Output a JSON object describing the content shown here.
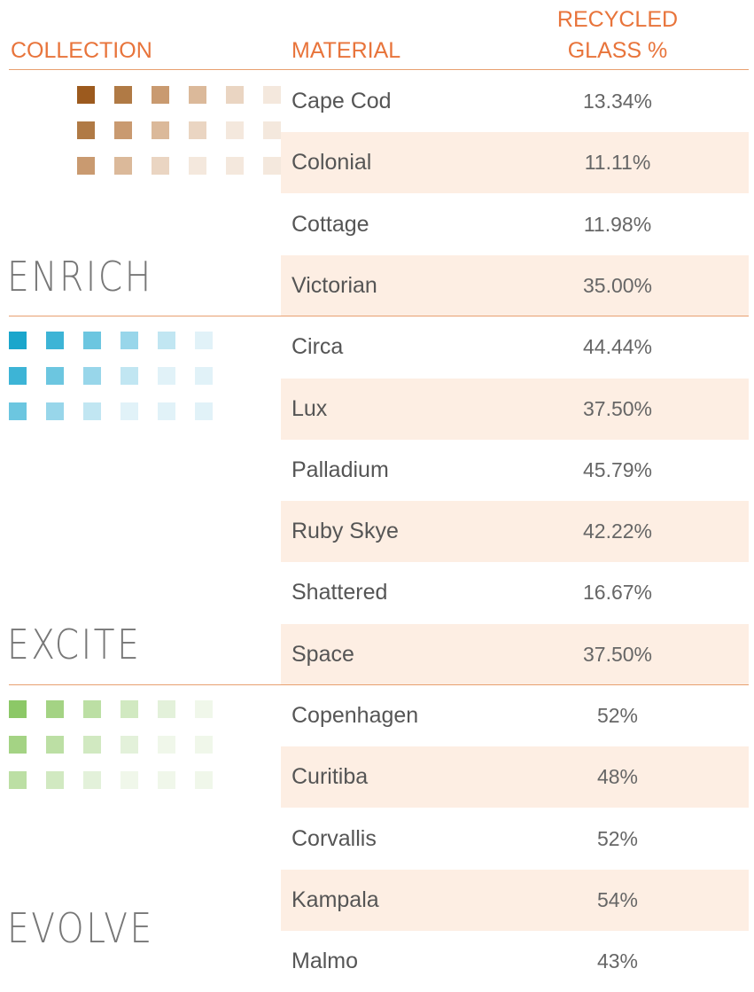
{
  "header": {
    "collection": "COLLECTION",
    "material": "MATERIAL",
    "recycled": [
      "RECYCLED",
      "GLASS %"
    ]
  },
  "collections": [
    {
      "name": "ENRICH",
      "rows": [
        [
          "Cape Cod",
          "13.34%"
        ],
        [
          "Colonial",
          "11.11%"
        ],
        [
          "Cottage",
          "11.98%"
        ],
        [
          "Victorian",
          "35.00%"
        ]
      ]
    },
    {
      "name": "EXCITE",
      "rows": [
        [
          "Circa",
          "44.44%"
        ],
        [
          "Lux",
          "37.50%"
        ],
        [
          "Palladium",
          "45.79%"
        ],
        [
          "Ruby Skye",
          "42.22%"
        ],
        [
          "Shattered",
          "16.67%"
        ],
        [
          "Space",
          "37.50%"
        ]
      ]
    },
    {
      "name": "EVOLVE",
      "rows": [
        [
          "Copenhagen",
          "52%"
        ],
        [
          "Curitiba",
          "48%"
        ],
        [
          "Corvallis",
          "52%"
        ],
        [
          "Kampala",
          "54%"
        ],
        [
          "Malmo",
          "43%"
        ]
      ]
    }
  ]
}
